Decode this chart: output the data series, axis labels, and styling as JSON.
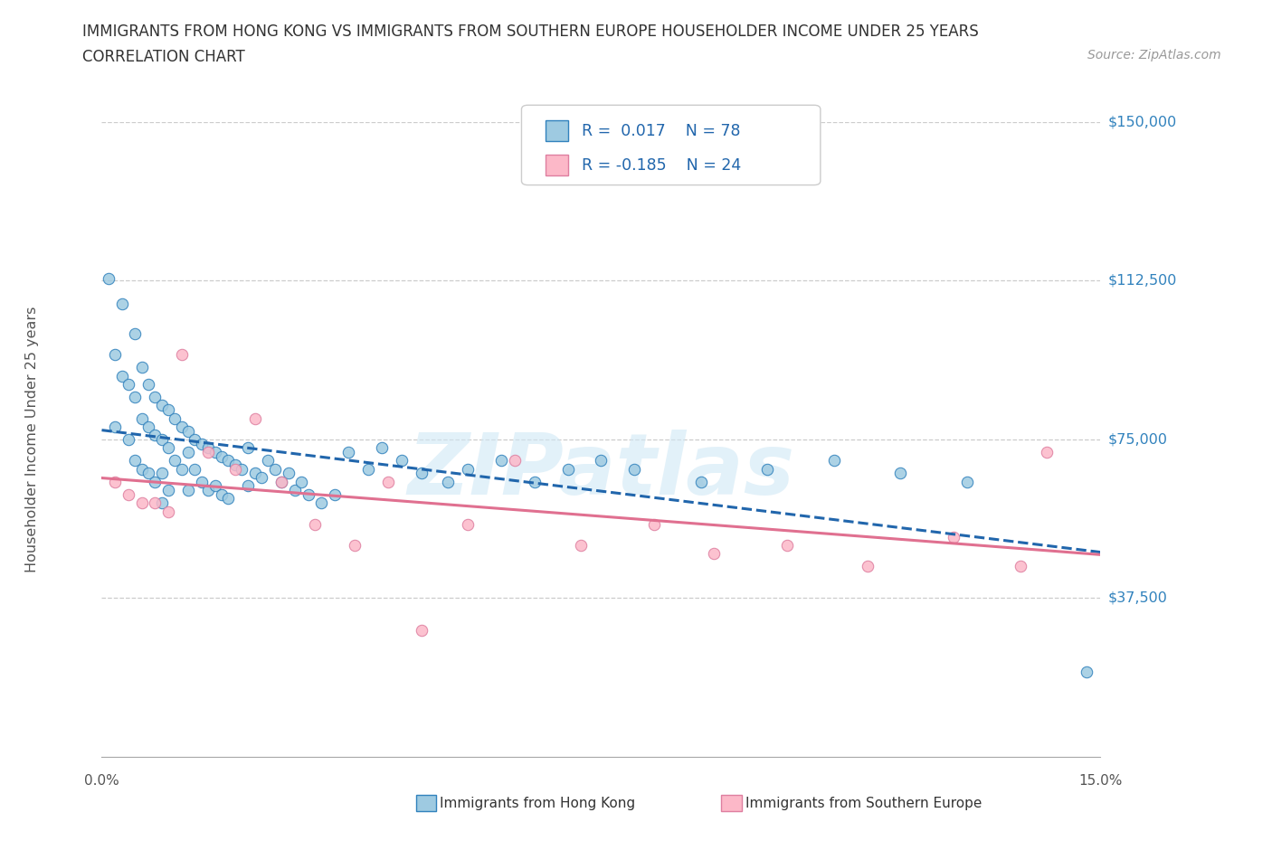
{
  "title_line1": "IMMIGRANTS FROM HONG KONG VS IMMIGRANTS FROM SOUTHERN EUROPE HOUSEHOLDER INCOME UNDER 25 YEARS",
  "title_line2": "CORRELATION CHART",
  "source_text": "Source: ZipAtlas.com",
  "ylabel": "Householder Income Under 25 years",
  "xmin": 0.0,
  "xmax": 0.15,
  "ymin": 0,
  "ymax": 150000,
  "yticks": [
    0,
    37500,
    75000,
    112500,
    150000
  ],
  "ytick_labels": [
    "",
    "$37,500",
    "$75,000",
    "$112,500",
    "$150,000"
  ],
  "grid_color": "#cccccc",
  "background_color": "#ffffff",
  "watermark_line1": "ZIP",
  "watermark_line2": "atlas",
  "legend_label1": "Immigrants from Hong Kong",
  "legend_label2": "Immigrants from Southern Europe",
  "color_hk_fill": "#9ecae1",
  "color_hk_edge": "#3182bd",
  "color_se_fill": "#fcb8c8",
  "color_se_edge": "#de7fa0",
  "color_hk_line": "#2166ac",
  "color_se_line": "#e07090",
  "legend_text_color": "#2166ac",
  "title_color": "#333333",
  "source_color": "#999999",
  "yaxis_label_color": "#3182bd",
  "hk_x": [
    0.001,
    0.002,
    0.002,
    0.003,
    0.003,
    0.004,
    0.004,
    0.005,
    0.005,
    0.005,
    0.006,
    0.006,
    0.006,
    0.007,
    0.007,
    0.007,
    0.008,
    0.008,
    0.008,
    0.009,
    0.009,
    0.009,
    0.009,
    0.01,
    0.01,
    0.01,
    0.011,
    0.011,
    0.012,
    0.012,
    0.013,
    0.013,
    0.013,
    0.014,
    0.014,
    0.015,
    0.015,
    0.016,
    0.016,
    0.017,
    0.017,
    0.018,
    0.018,
    0.019,
    0.019,
    0.02,
    0.021,
    0.022,
    0.022,
    0.023,
    0.024,
    0.025,
    0.026,
    0.027,
    0.028,
    0.029,
    0.03,
    0.031,
    0.033,
    0.035,
    0.037,
    0.04,
    0.042,
    0.045,
    0.048,
    0.052,
    0.055,
    0.06,
    0.065,
    0.07,
    0.075,
    0.08,
    0.09,
    0.1,
    0.11,
    0.12,
    0.13,
    0.148
  ],
  "hk_y": [
    113000,
    95000,
    78000,
    107000,
    90000,
    88000,
    75000,
    100000,
    85000,
    70000,
    92000,
    80000,
    68000,
    88000,
    78000,
    67000,
    85000,
    76000,
    65000,
    83000,
    75000,
    67000,
    60000,
    82000,
    73000,
    63000,
    80000,
    70000,
    78000,
    68000,
    77000,
    72000,
    63000,
    75000,
    68000,
    74000,
    65000,
    73000,
    63000,
    72000,
    64000,
    71000,
    62000,
    70000,
    61000,
    69000,
    68000,
    73000,
    64000,
    67000,
    66000,
    70000,
    68000,
    65000,
    67000,
    63000,
    65000,
    62000,
    60000,
    62000,
    72000,
    68000,
    73000,
    70000,
    67000,
    65000,
    68000,
    70000,
    65000,
    68000,
    70000,
    68000,
    65000,
    68000,
    70000,
    67000,
    65000,
    20000
  ],
  "se_x": [
    0.002,
    0.004,
    0.006,
    0.008,
    0.01,
    0.012,
    0.016,
    0.02,
    0.023,
    0.027,
    0.032,
    0.038,
    0.043,
    0.048,
    0.055,
    0.062,
    0.072,
    0.083,
    0.092,
    0.103,
    0.115,
    0.128,
    0.138,
    0.142
  ],
  "se_y": [
    65000,
    62000,
    60000,
    60000,
    58000,
    95000,
    72000,
    68000,
    80000,
    65000,
    55000,
    50000,
    65000,
    30000,
    55000,
    70000,
    50000,
    55000,
    48000,
    50000,
    45000,
    52000,
    45000,
    72000
  ]
}
